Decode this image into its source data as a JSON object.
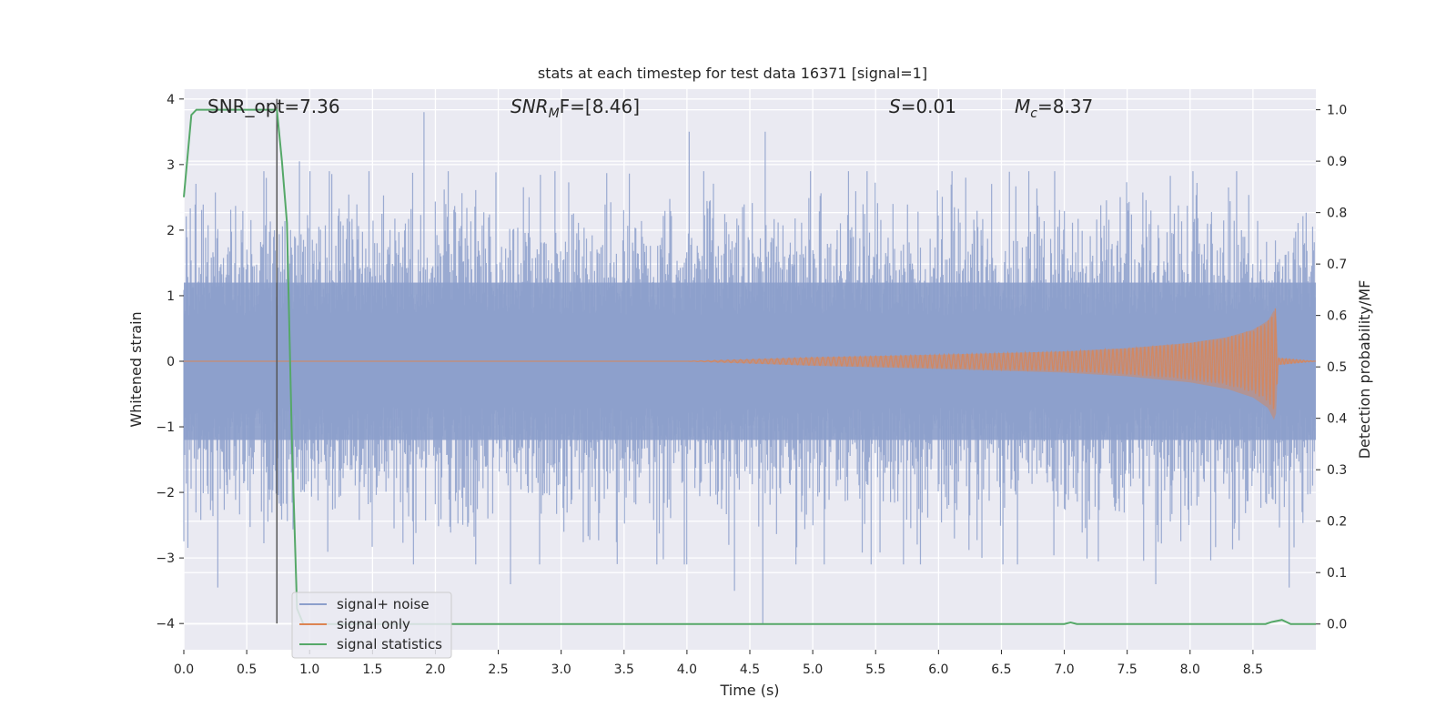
{
  "chart_data": {
    "type": "line",
    "title": "stats at each timestep for test data 16371 [signal=1]",
    "xlabel": "Time (s)",
    "ylabel": "Whitened strain",
    "y2label": "Detection probability/MF",
    "xlim": [
      0.0,
      9.0
    ],
    "ylim": [
      -4.4,
      4.15
    ],
    "y2lim": [
      -0.05,
      1.04
    ],
    "xticks": [
      "0.0",
      "0.5",
      "1.0",
      "1.5",
      "2.0",
      "2.5",
      "3.0",
      "3.5",
      "4.0",
      "4.5",
      "5.0",
      "5.5",
      "6.0",
      "6.5",
      "7.0",
      "7.5",
      "8.0",
      "8.5"
    ],
    "yticks": [
      "−4",
      "−3",
      "−2",
      "−1",
      "0",
      "1",
      "2",
      "3",
      "4"
    ],
    "y2ticks": [
      "0.0",
      "0.1",
      "0.2",
      "0.3",
      "0.4",
      "0.5",
      "0.6",
      "0.7",
      "0.8",
      "0.9",
      "1.0"
    ],
    "grid": true,
    "legend_position": "lower-left",
    "colors": {
      "background": "#eaeaf2",
      "grid": "#ffffff",
      "signal_noise": "#8c9fcb",
      "signal_only": "#dd8452",
      "statistics": "#55a868",
      "marker_line": "#555555"
    },
    "annotations": {
      "snr_opt": "SNR_opt=7.36",
      "snr_mf_main": "SNR",
      "snr_mf_sub": "M",
      "snr_mf_tail": "F=[8.46]",
      "s_main": "S",
      "s_tail": "=0.01",
      "mc_main": "M",
      "mc_sub": "c",
      "mc_tail": "=8.37"
    },
    "series": [
      {
        "name": "signal+ noise",
        "axis": "left",
        "description_values": "whitened noisy strain, roughly Gaussian, amplitude ±2.5 with peaks up to ~3.8 and down to ~-4.0",
        "peaks": [
          [
            1.91,
            3.8
          ],
          [
            4.02,
            3.5
          ],
          [
            4.62,
            3.5
          ],
          [
            0.92,
            3.05
          ],
          [
            4.6,
            -4.0
          ],
          [
            4.38,
            -3.5
          ],
          [
            0.27,
            -3.45
          ],
          [
            2.6,
            -3.4
          ],
          [
            8.79,
            -3.45
          ],
          [
            7.73,
            -3.4
          ]
        ]
      },
      {
        "name": "signal only",
        "axis": "left",
        "description_values": "chirp signal growing from ~0 near t=4.3 s to peak amplitude ~0.8 at merger t≈8.68 s, then ringdown",
        "envelope": [
          [
            4.0,
            0.0
          ],
          [
            5.0,
            0.06
          ],
          [
            6.0,
            0.1
          ],
          [
            7.0,
            0.15
          ],
          [
            7.5,
            0.2
          ],
          [
            8.0,
            0.28
          ],
          [
            8.3,
            0.37
          ],
          [
            8.5,
            0.48
          ],
          [
            8.62,
            0.62
          ],
          [
            8.68,
            0.82
          ],
          [
            8.7,
            0.05
          ],
          [
            9.0,
            0.0
          ]
        ]
      },
      {
        "name": "signal statistics",
        "axis": "right",
        "points": [
          [
            0.0,
            0.83
          ],
          [
            0.06,
            0.99
          ],
          [
            0.1,
            1.0
          ],
          [
            0.7,
            1.0
          ],
          [
            0.74,
            1.0
          ],
          [
            0.78,
            0.9
          ],
          [
            0.82,
            0.78
          ],
          [
            0.86,
            0.35
          ],
          [
            0.9,
            0.03
          ],
          [
            0.95,
            0.0
          ],
          [
            7.0,
            0.0
          ],
          [
            7.05,
            0.003
          ],
          [
            7.1,
            0.0
          ],
          [
            8.6,
            0.0
          ],
          [
            8.65,
            0.004
          ],
          [
            8.73,
            0.008
          ],
          [
            8.8,
            0.0
          ],
          [
            9.0,
            0.0
          ]
        ]
      }
    ],
    "marker_line_x": 0.74
  },
  "legend": {
    "items": [
      {
        "label": "signal+ noise",
        "color": "#8c9fcb"
      },
      {
        "label": "signal only",
        "color": "#dd8452"
      },
      {
        "label": "signal statistics",
        "color": "#55a868"
      }
    ]
  }
}
